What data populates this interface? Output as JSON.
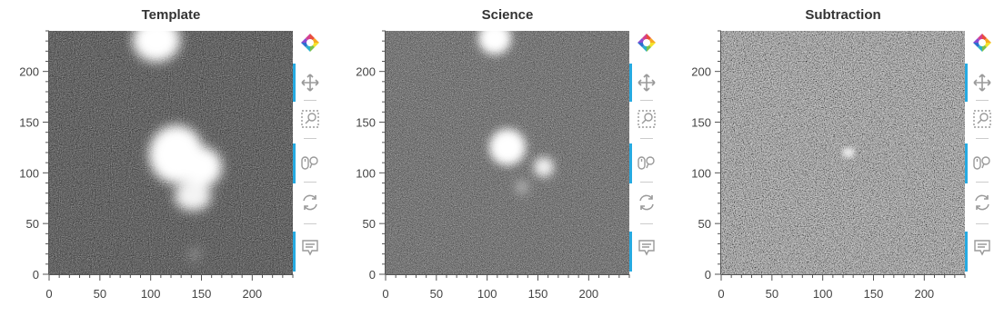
{
  "panels": [
    {
      "title": "Template",
      "kind": "template"
    },
    {
      "title": "Science",
      "kind": "science"
    },
    {
      "title": "Subtraction",
      "kind": "subtraction"
    }
  ],
  "axes": {
    "x_ticks": [
      "0",
      "50",
      "100",
      "150",
      "200"
    ],
    "y_ticks": [
      "0",
      "50",
      "100",
      "150",
      "200"
    ],
    "x_range": [
      0,
      240
    ],
    "y_range": [
      0,
      240
    ]
  },
  "toolbar": {
    "tools": [
      {
        "icon": "bokeh-logo-icon"
      },
      {
        "icon": "pan-icon"
      },
      {
        "icon": "box-zoom-icon"
      },
      {
        "icon": "wheel-zoom-icon"
      },
      {
        "icon": "reset-icon"
      },
      {
        "icon": "hover-icon"
      }
    ]
  },
  "colors": {
    "accent": "#26aae1",
    "background": "#ffffff"
  }
}
